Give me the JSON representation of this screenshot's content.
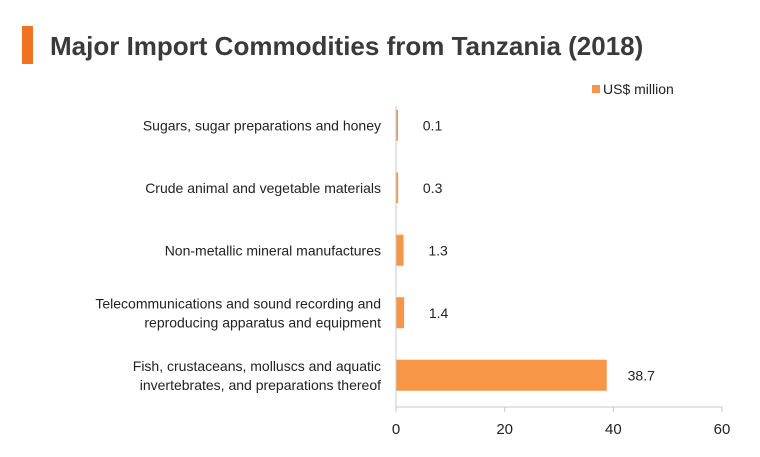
{
  "title": "Major Import Commodities from Tanzania (2018)",
  "accent_color": "#F07322",
  "chart_data": {
    "type": "bar",
    "orientation": "horizontal",
    "categories": [
      [
        "Sugars, sugar preparations and honey"
      ],
      [
        "Crude animal and vegetable materials"
      ],
      [
        "Non-metallic mineral manufactures"
      ],
      [
        "Telecommunications and sound recording and",
        "reproducing apparatus and equipment"
      ],
      [
        "Fish, crustaceans, molluscs and aquatic",
        "invertebrates, and preparations thereof"
      ]
    ],
    "series": [
      {
        "name": "US$ million",
        "color": "#F79646",
        "values": [
          0.1,
          0.3,
          1.3,
          1.4,
          38.7
        ]
      }
    ],
    "data_labels": [
      "0.1",
      "0.3",
      "1.3",
      "1.4",
      "38.7"
    ],
    "xlim": [
      0,
      60
    ],
    "xticks": [
      0,
      20,
      40,
      60
    ],
    "xtick_labels": [
      "0",
      "20",
      "40",
      "60"
    ],
    "legend_position": "top-right",
    "grid": false
  }
}
